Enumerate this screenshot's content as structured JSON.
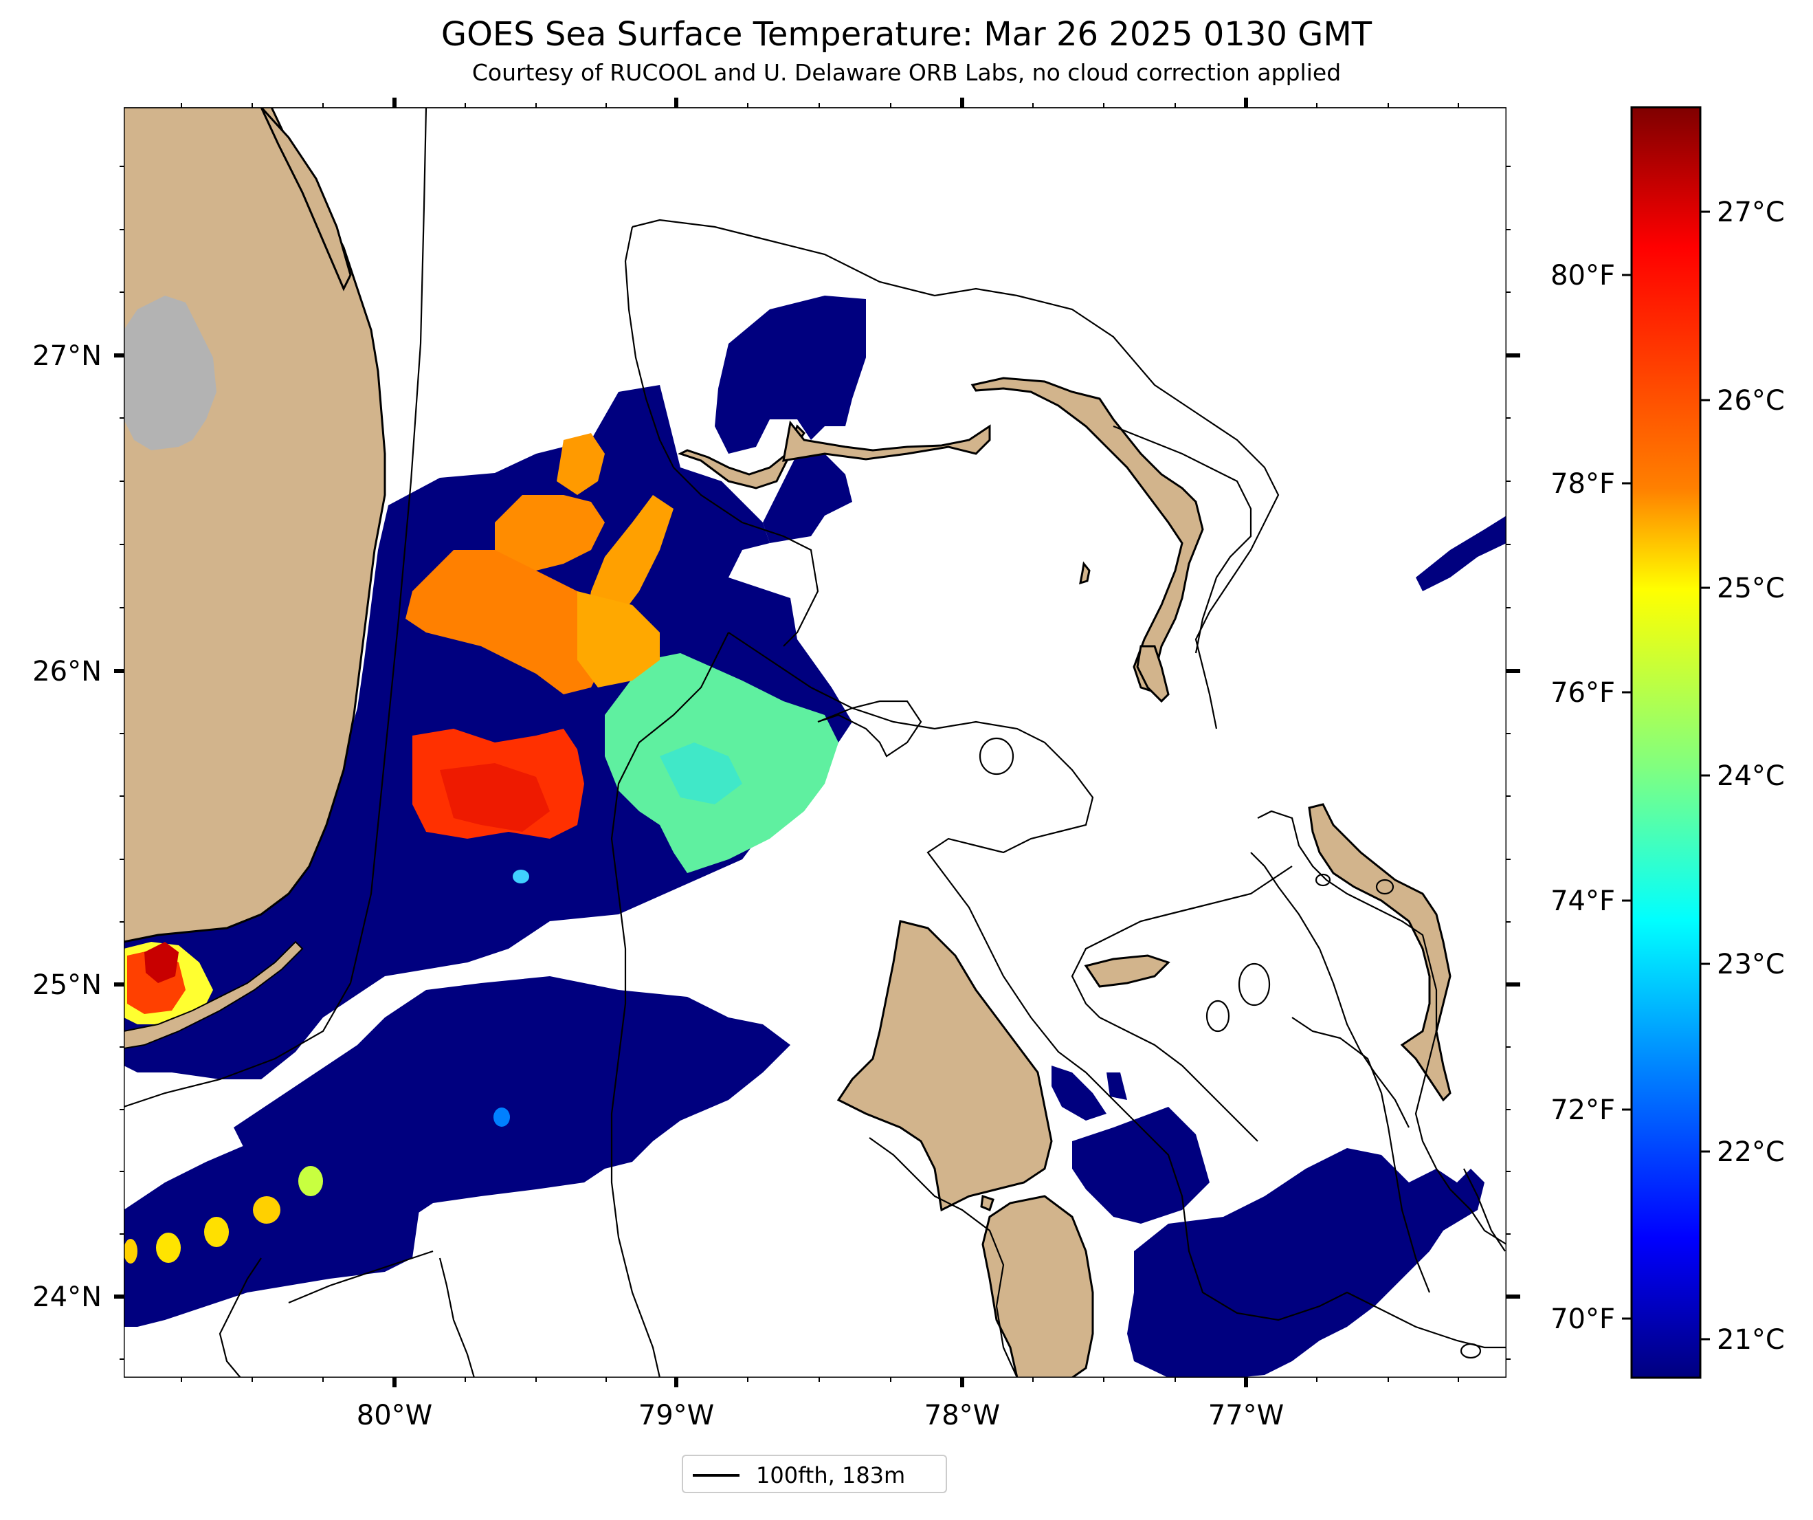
{
  "header": {
    "title": "GOES Sea Surface Temperature: Mar 26 2025 0130 GMT",
    "subtitle": "Courtesy of RUCOOL and U. Delaware ORB Labs, no cloud correction applied"
  },
  "map": {
    "x_axis_labels": [
      "80°W",
      "79°W",
      "78°W",
      "77°W"
    ],
    "y_axis_labels": [
      "27°N",
      "26°N",
      "25°N",
      "24°N"
    ],
    "land_color": "#d2b48c",
    "lake_color": "#b3b3b3",
    "cold_water_color": "#00007f"
  },
  "colorbar": {
    "celsius_labels": [
      "27°C",
      "26°C",
      "25°C",
      "24°C",
      "23°C",
      "22°C",
      "21°C"
    ],
    "fahrenheit_labels": [
      "80°F",
      "78°F",
      "76°F",
      "74°F",
      "72°F",
      "70°F"
    ],
    "colormap": [
      "#7f0000",
      "#ff0000",
      "#ff8000",
      "#ffff00",
      "#80ff80",
      "#00ffff",
      "#0080ff",
      "#0000ff",
      "#00007f"
    ]
  },
  "legend": {
    "label": "100fth, 183m"
  }
}
